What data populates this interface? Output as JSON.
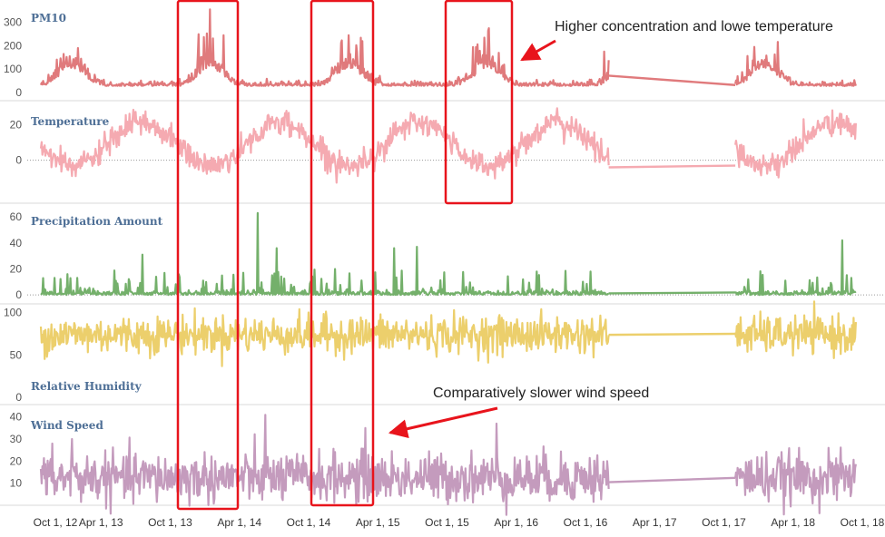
{
  "annotations": {
    "top": "Higher concentration and lowe temperature",
    "bottom": "Comparatively slower wind speed"
  },
  "colors": {
    "pm10": "#e07a7c",
    "temperature": "#f5aab1",
    "precipitation": "#74b06b",
    "humidity": "#eccf6c",
    "wind": "#c49bbd",
    "highlight": "#e8141c",
    "title": "#4e6f96"
  },
  "chart_data": {
    "type": "line",
    "x_axis": {
      "tick_labels": [
        "Oct 1, 12",
        "Apr 1, 13",
        "Oct 1, 13",
        "Apr 1, 14",
        "Oct 1, 14",
        "Apr 1, 15",
        "Oct 1, 15",
        "Apr 1, 16",
        "Oct 1, 16",
        "Apr 1, 17",
        "Oct 1, 17",
        "Apr 1, 18",
        "Oct 1, 18"
      ],
      "range": [
        "2012-10-01",
        "2018-10-01"
      ],
      "gap": [
        "2016-12-01",
        "2017-10-31"
      ]
    },
    "highlight_periods": [
      [
        "2013-11-01",
        "2014-05-01"
      ],
      [
        "2014-11-01",
        "2015-05-01"
      ],
      [
        "2015-11-01",
        "2016-05-01"
      ]
    ],
    "highlight_panels": [
      [
        "PM10",
        "Wind Speed"
      ],
      [
        "PM10",
        "Wind Speed"
      ],
      [
        "PM10",
        "Temperature"
      ]
    ],
    "panels": [
      {
        "title": "PM10",
        "ylim": [
          0,
          380
        ],
        "ticks": [
          0,
          100,
          200,
          300
        ],
        "color_key": "pm10",
        "baseline_dotted": false,
        "seasonal": {
          "kind": "winter_peak",
          "base": 28,
          "amp": 75,
          "noise": 22,
          "floor": 10,
          "spike_max": 360
        },
        "peaks": [
          {
            "x": "2013-01-10",
            "y": 155
          },
          {
            "x": "2014-01-15",
            "y": 355
          },
          {
            "x": "2014-02-20",
            "y": 245
          },
          {
            "x": "2015-01-15",
            "y": 245
          },
          {
            "x": "2015-02-20",
            "y": 220
          },
          {
            "x": "2016-01-20",
            "y": 275
          },
          {
            "x": "2016-11-20",
            "y": 175
          },
          {
            "x": "2017-12-20",
            "y": 195
          }
        ]
      },
      {
        "title": "Temperature",
        "ylim": [
          -15,
          30
        ],
        "ticks": [
          0,
          20
        ],
        "color_key": "temperature",
        "baseline_dotted": true,
        "seasonal": {
          "kind": "summer_peak",
          "mean": 9,
          "amp": 12,
          "noise": 3.5
        },
        "peaks": []
      },
      {
        "title": "Precipitation Amount",
        "ylim": [
          -2,
          65
        ],
        "ticks": [
          0,
          20,
          40,
          60
        ],
        "color_key": "precipitation",
        "baseline_dotted": true,
        "seasonal": {
          "kind": "spiky",
          "base": 1.5,
          "spike_prob": 0.1,
          "spike_max": 18
        },
        "peaks": [
          {
            "x": "2013-07-20",
            "y": 31
          },
          {
            "x": "2014-05-20",
            "y": 63
          },
          {
            "x": "2014-07-10",
            "y": 36
          },
          {
            "x": "2015-05-15",
            "y": 36
          },
          {
            "x": "2015-07-15",
            "y": 37
          },
          {
            "x": "2018-08-10",
            "y": 42
          }
        ]
      },
      {
        "title": "Relative Humidity",
        "ylim": [
          0,
          105
        ],
        "ticks": [
          0,
          50,
          100
        ],
        "color_key": "humidity",
        "baseline_dotted": false,
        "seasonal": {
          "kind": "flat",
          "mean": 74,
          "amp": 6,
          "noise": 11
        },
        "peaks": []
      },
      {
        "title": "Wind Speed",
        "ylim": [
          0,
          44
        ],
        "ticks": [
          10,
          20,
          30,
          40
        ],
        "color_key": "wind",
        "baseline_dotted": false,
        "seasonal": {
          "kind": "flat",
          "mean": 12.5,
          "amp": 0,
          "noise": 5.5
        },
        "peaks": [
          {
            "x": "2013-01-15",
            "y": 30
          },
          {
            "x": "2014-06-10",
            "y": 41
          },
          {
            "x": "2015-03-01",
            "y": 35
          },
          {
            "x": "2016-02-10",
            "y": 37
          }
        ]
      }
    ]
  }
}
